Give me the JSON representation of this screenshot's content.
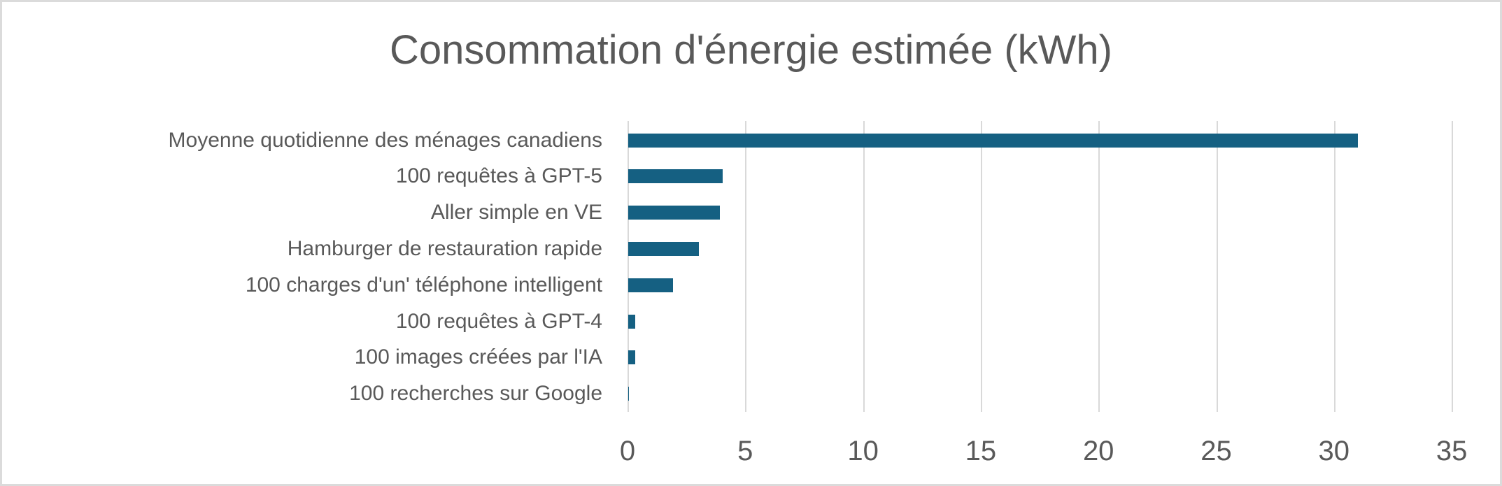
{
  "title": "Consommation d'énergie estimée (kWh)",
  "chart_data": {
    "type": "bar",
    "orientation": "horizontal",
    "title": "Consommation d'énergie estimée (kWh)",
    "categories": [
      "Moyenne quotidienne des ménages canadiens",
      "100 requêtes à GPT-5",
      "Aller simple en VE",
      "Hamburger de restauration rapide",
      "100 charges d'un' téléphone intelligent",
      "100 requêtes à GPT-4",
      "100 images créées par l'IA",
      "100 recherches sur Google"
    ],
    "values": [
      31,
      4,
      3.9,
      3,
      1.9,
      0.3,
      0.3,
      0.03
    ],
    "x_ticks": [
      "0",
      "5",
      "10",
      "15",
      "20",
      "25",
      "30",
      "35"
    ],
    "xlim": [
      0,
      35
    ],
    "xlabel": "",
    "ylabel": "",
    "grid": "vertical-only",
    "legend": "none",
    "colors": {
      "bar": "#156082",
      "gridline": "#D9D9D9",
      "axis_text": "#595959",
      "title_text": "#595959",
      "frame_border": "#DBDBDB",
      "background": "#FFFFFF"
    }
  }
}
